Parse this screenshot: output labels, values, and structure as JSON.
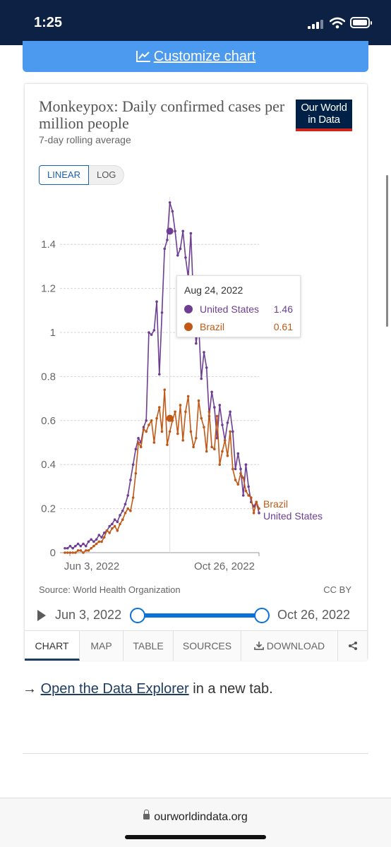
{
  "status_bar": {
    "time": "1:25"
  },
  "customize": {
    "label": "Customize chart",
    "icon": "line-chart-icon"
  },
  "chart_card": {
    "title": "Monkeypox: Daily confirmed cases per million people",
    "subtitle": "7-day rolling average",
    "logo_line1": "Our World",
    "logo_line2": "in Data",
    "scale_toggle": {
      "linear": "LINEAR",
      "log": "LOG",
      "selected": "LINEAR"
    },
    "source": "Source: World Health Organization",
    "license": "CC BY",
    "timeline": {
      "start": "Jun 3, 2022",
      "end": "Oct 26, 2022"
    },
    "tabs": [
      "CHART",
      "MAP",
      "TABLE",
      "SOURCES",
      "DOWNLOAD"
    ],
    "active_tab": "CHART",
    "tooltip": {
      "date": "Aug 24, 2022",
      "rows": [
        {
          "name": "United States",
          "value": "1.46",
          "color": "#6d3e91"
        },
        {
          "name": "Brazil",
          "value": "0.61",
          "color": "#c05917"
        }
      ]
    }
  },
  "chart_data": {
    "type": "line",
    "title": "Monkeypox: Daily confirmed cases per million people",
    "subtitle": "7-day rolling average",
    "x_tick_labels": [
      "Jun 3, 2022",
      "Oct 26, 2022"
    ],
    "y_ticks": [
      0,
      0.2,
      0.4,
      0.6,
      0.8,
      1,
      1.2,
      1.4
    ],
    "ylim": [
      0,
      1.6
    ],
    "grid": true,
    "series": [
      {
        "name": "United States",
        "color": "#6d3e91",
        "label_position": "end",
        "values": [
          0.02,
          0.02,
          0.03,
          0.02,
          0.03,
          0.04,
          0.03,
          0.04,
          0.03,
          0.05,
          0.06,
          0.05,
          0.06,
          0.08,
          0.07,
          0.09,
          0.1,
          0.12,
          0.13,
          0.15,
          0.14,
          0.17,
          0.19,
          0.22,
          0.26,
          0.33,
          0.4,
          0.47,
          0.52,
          0.5,
          0.57,
          0.6,
          1.0,
          0.99,
          1.01,
          1.14,
          0.81,
          1.09,
          1.38,
          1.42,
          1.59,
          1.55,
          1.46,
          1.35,
          1.38,
          1.46,
          1.34,
          1.25,
          1.45,
          1.15,
          0.95,
          1.04,
          0.79,
          0.91,
          0.84,
          0.62,
          0.73,
          0.66,
          0.52,
          0.67,
          0.58,
          0.51,
          0.59,
          0.64,
          0.55,
          0.38,
          0.45,
          0.38,
          0.26,
          0.4,
          0.3,
          0.23,
          0.21,
          0.23,
          0.18
        ]
      },
      {
        "name": "Brazil",
        "color": "#c05917",
        "label_position": "end",
        "values": [
          0.0,
          0.0,
          0.0,
          0.0,
          0.0,
          0.01,
          0.01,
          0.0,
          0.01,
          0.01,
          0.02,
          0.03,
          0.04,
          0.05,
          0.05,
          0.07,
          0.1,
          0.09,
          0.11,
          0.12,
          0.1,
          0.13,
          0.15,
          0.18,
          0.2,
          0.19,
          0.25,
          0.36,
          0.5,
          0.48,
          0.56,
          0.55,
          0.58,
          0.6,
          0.5,
          0.61,
          0.66,
          0.55,
          0.74,
          0.49,
          0.55,
          0.6,
          0.64,
          0.54,
          0.67,
          0.51,
          0.64,
          0.71,
          0.55,
          0.48,
          0.52,
          0.69,
          0.61,
          0.57,
          0.46,
          0.64,
          0.48,
          0.47,
          0.62,
          0.4,
          0.46,
          0.51,
          0.44,
          0.55,
          0.38,
          0.33,
          0.31,
          0.36,
          0.34,
          0.28,
          0.26,
          0.25,
          0.18,
          0.23,
          0.2
        ]
      }
    ],
    "hover": {
      "date": "Aug 24, 2022",
      "values": {
        "United States": 1.46,
        "Brazil": 0.61
      }
    }
  },
  "explorer": {
    "arrow": "→",
    "link": "Open the Data Explorer",
    "suffix": " in a new tab."
  },
  "url_bar": {
    "url": "ourworldindata.org"
  }
}
